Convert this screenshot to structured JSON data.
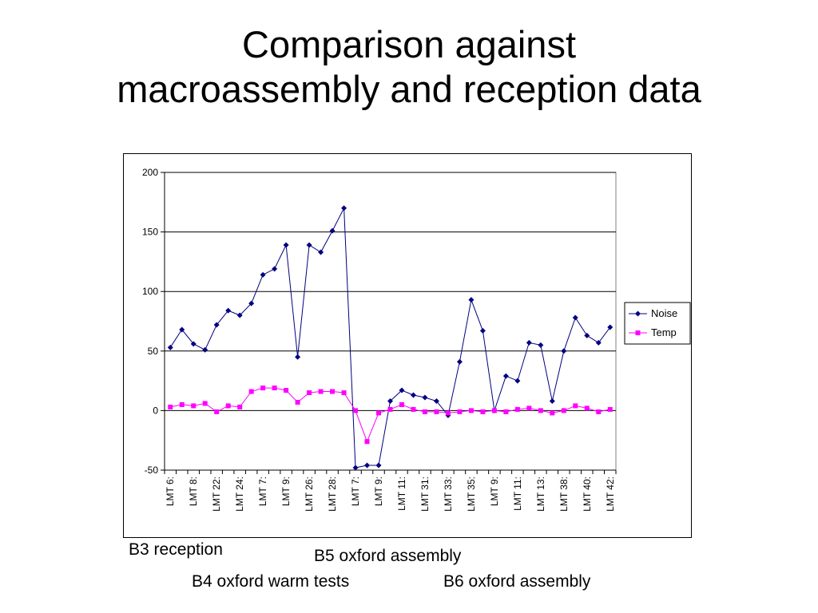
{
  "slide": {
    "title_line1": "Comparison against",
    "title_line2": "macroassembly and reception data"
  },
  "captions": {
    "b3": "B3 reception",
    "b5": "B5 oxford assembly",
    "b4": "B4 oxford warm tests",
    "b6": "B6 oxford assembly"
  },
  "chart_data": {
    "type": "line",
    "title": "",
    "xlabel": "",
    "ylabel": "",
    "ylim": [
      -50,
      200
    ],
    "yticks": [
      -50,
      0,
      50,
      100,
      150,
      200
    ],
    "grid": true,
    "legend_position": "right",
    "x_tick_labels": [
      "LMT 6:",
      "LMT 8:",
      "LMT 22:",
      "LMT 24:",
      "LMT 7:",
      "LMT 9:",
      "LMT 26:",
      "LMT 28:",
      "LMT 7:",
      "LMT 9:",
      "LMT 11:",
      "LMT 31:",
      "LMT 33:",
      "LMT 35:",
      "LMT 9:",
      "LMT 11:",
      "LMT 13:",
      "LMT 38:",
      "LMT 40:",
      "LMT 42:"
    ],
    "point_count": 39,
    "series": [
      {
        "name": "Noise",
        "color": "#000080",
        "marker": "diamond",
        "values": [
          53,
          68,
          56,
          51,
          72,
          84,
          80,
          90,
          114,
          119,
          139,
          45,
          139,
          133,
          151,
          170,
          -48,
          -46,
          -46,
          8,
          17,
          13,
          11,
          8,
          -4,
          41,
          93,
          67,
          0,
          29,
          25,
          57,
          55,
          8,
          50,
          78,
          63,
          57,
          70
        ]
      },
      {
        "name": "Temp",
        "color": "#ff00ff",
        "marker": "square",
        "values": [
          3,
          5,
          4,
          6,
          -1,
          4,
          3,
          16,
          19,
          19,
          17,
          7,
          15,
          16,
          16,
          15,
          0,
          -26,
          -2,
          1,
          5,
          1,
          -1,
          -1,
          -2,
          -1,
          0,
          -1,
          0,
          -1,
          1,
          2,
          0,
          -2,
          0,
          4,
          2,
          -1,
          1
        ]
      }
    ]
  }
}
